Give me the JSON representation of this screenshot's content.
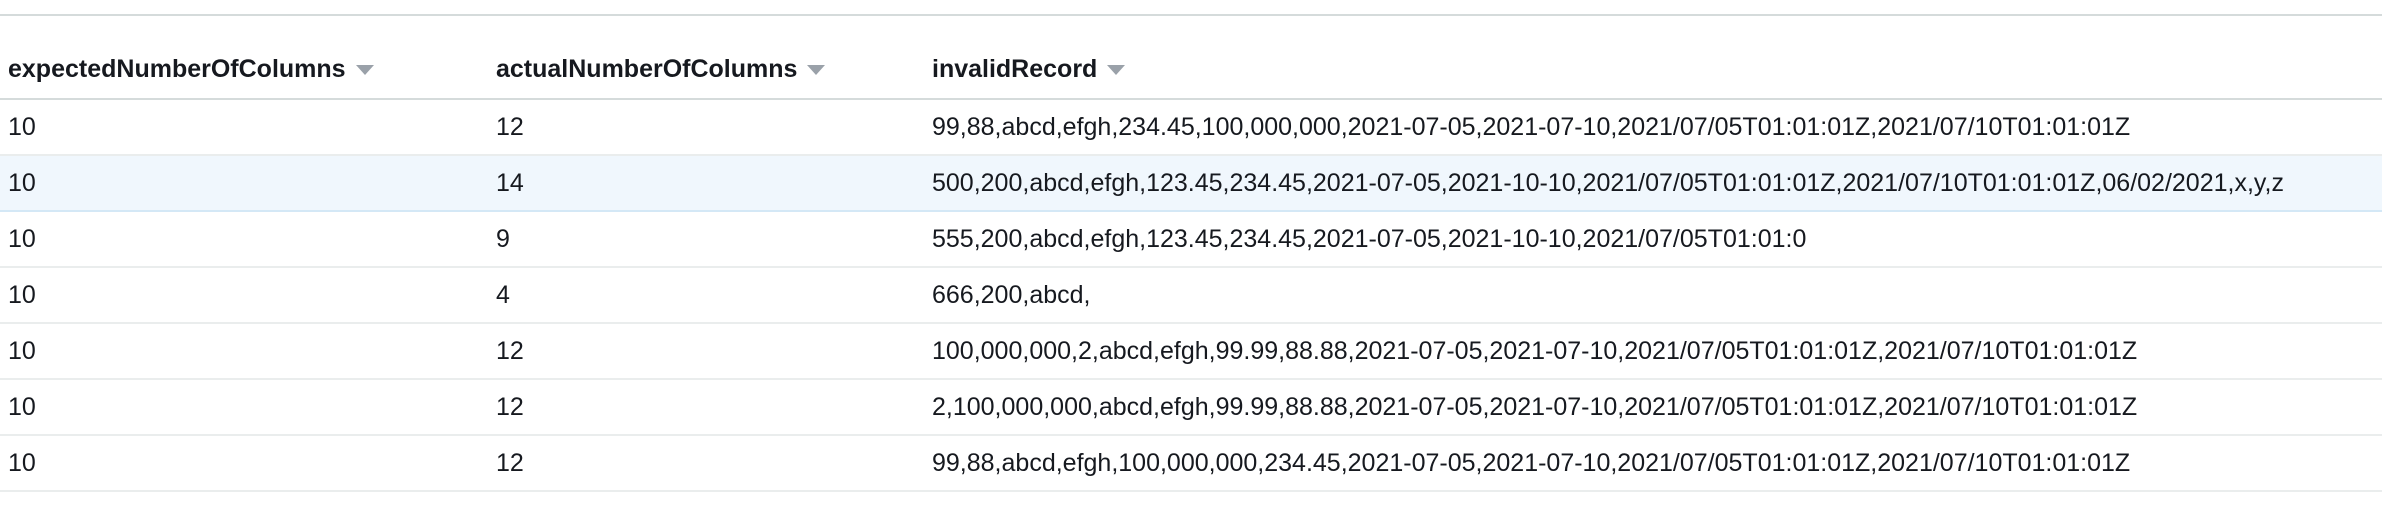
{
  "table": {
    "columns": [
      {
        "label": "expectedNumberOfColumns",
        "icon": "sort-down-icon"
      },
      {
        "label": "actualNumberOfColumns",
        "icon": "sort-down-icon"
      },
      {
        "label": "invalidRecord",
        "icon": "sort-down-icon"
      }
    ],
    "rows": [
      {
        "expected": "10",
        "actual": "12",
        "record": "99,88,abcd,efgh,234.45,100,000,000,2021-07-05,2021-07-10,2021/07/05T01:01:01Z,2021/07/10T01:01:01Z"
      },
      {
        "expected": "10",
        "actual": "14",
        "record": "500,200,abcd,efgh,123.45,234.45,2021-07-05,2021-10-10,2021/07/05T01:01:01Z,2021/07/10T01:01:01Z,06/02/2021,x,y,z"
      },
      {
        "expected": "10",
        "actual": "9",
        "record": "555,200,abcd,efgh,123.45,234.45,2021-07-05,2021-10-10,2021/07/05T01:01:0"
      },
      {
        "expected": "10",
        "actual": "4",
        "record": "666,200,abcd,"
      },
      {
        "expected": "10",
        "actual": "12",
        "record": "100,000,000,2,abcd,efgh,99.99,88.88,2021-07-05,2021-07-10,2021/07/05T01:01:01Z,2021/07/10T01:01:01Z"
      },
      {
        "expected": "10",
        "actual": "12",
        "record": "2,100,000,000,abcd,efgh,99.99,88.88,2021-07-05,2021-07-10,2021/07/05T01:01:01Z,2021/07/10T01:01:01Z"
      },
      {
        "expected": "10",
        "actual": "12",
        "record": "99,88,abcd,efgh,100,000,000,234.45,2021-07-05,2021-07-10,2021/07/05T01:01:01Z,2021/07/10T01:01:01Z"
      }
    ],
    "highlight_color": "#f0f7fd"
  }
}
